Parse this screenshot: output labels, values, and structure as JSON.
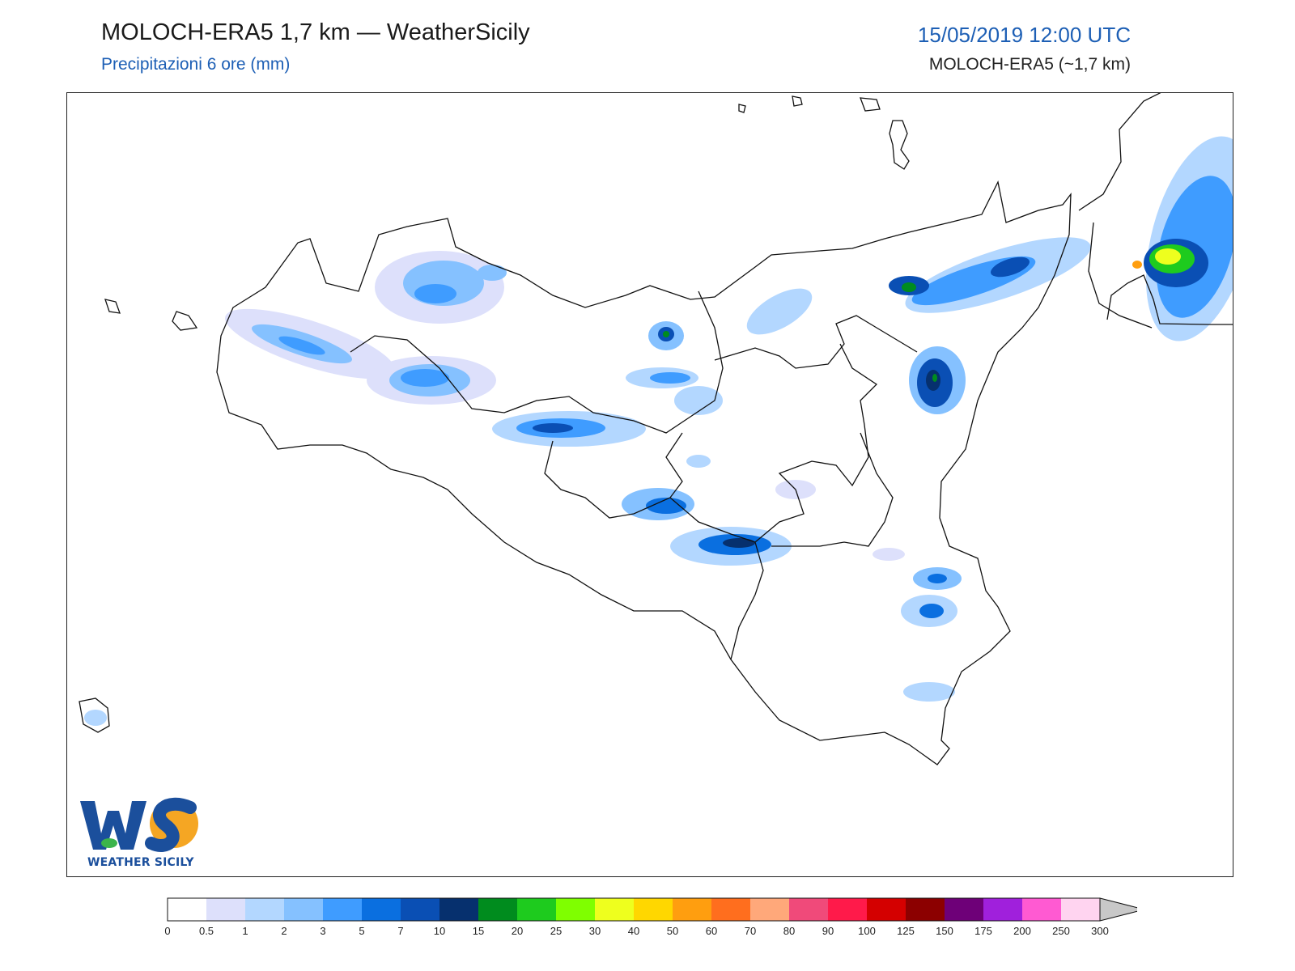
{
  "header": {
    "title": "MOLOCH-ERA5 1,7 km — WeatherSicily",
    "subtitle": "Precipitazioni 6 ore (mm)",
    "datetime": "15/05/2019 12:00 UTC",
    "model": "MOLOCH-ERA5 (~1,7 km)"
  },
  "logo": {
    "initials": "WS",
    "text": "WEATHER SICILY"
  },
  "legend": {
    "ticks": [
      "0",
      "0.5",
      "1",
      "2",
      "3",
      "5",
      "7",
      "10",
      "15",
      "20",
      "25",
      "30",
      "40",
      "50",
      "60",
      "70",
      "80",
      "90",
      "100",
      "125",
      "150",
      "175",
      "200",
      "250",
      "300"
    ],
    "colors": [
      "#ffffff",
      "#dde0fb",
      "#b3d7ff",
      "#85c1ff",
      "#3f9cff",
      "#0a6fe0",
      "#0a4fb4",
      "#06306e",
      "#008c1e",
      "#1ecb1e",
      "#7fff00",
      "#eeff1e",
      "#ffd700",
      "#ff9e0f",
      "#ff6e1e",
      "#ffa87a",
      "#f04a7a",
      "#ff1a4a",
      "#d40000",
      "#8c0000",
      "#6e0078",
      "#a020dc",
      "#ff5ad2",
      "#ffd4f0"
    ],
    "overflow_color": "#c8c8c8"
  }
}
